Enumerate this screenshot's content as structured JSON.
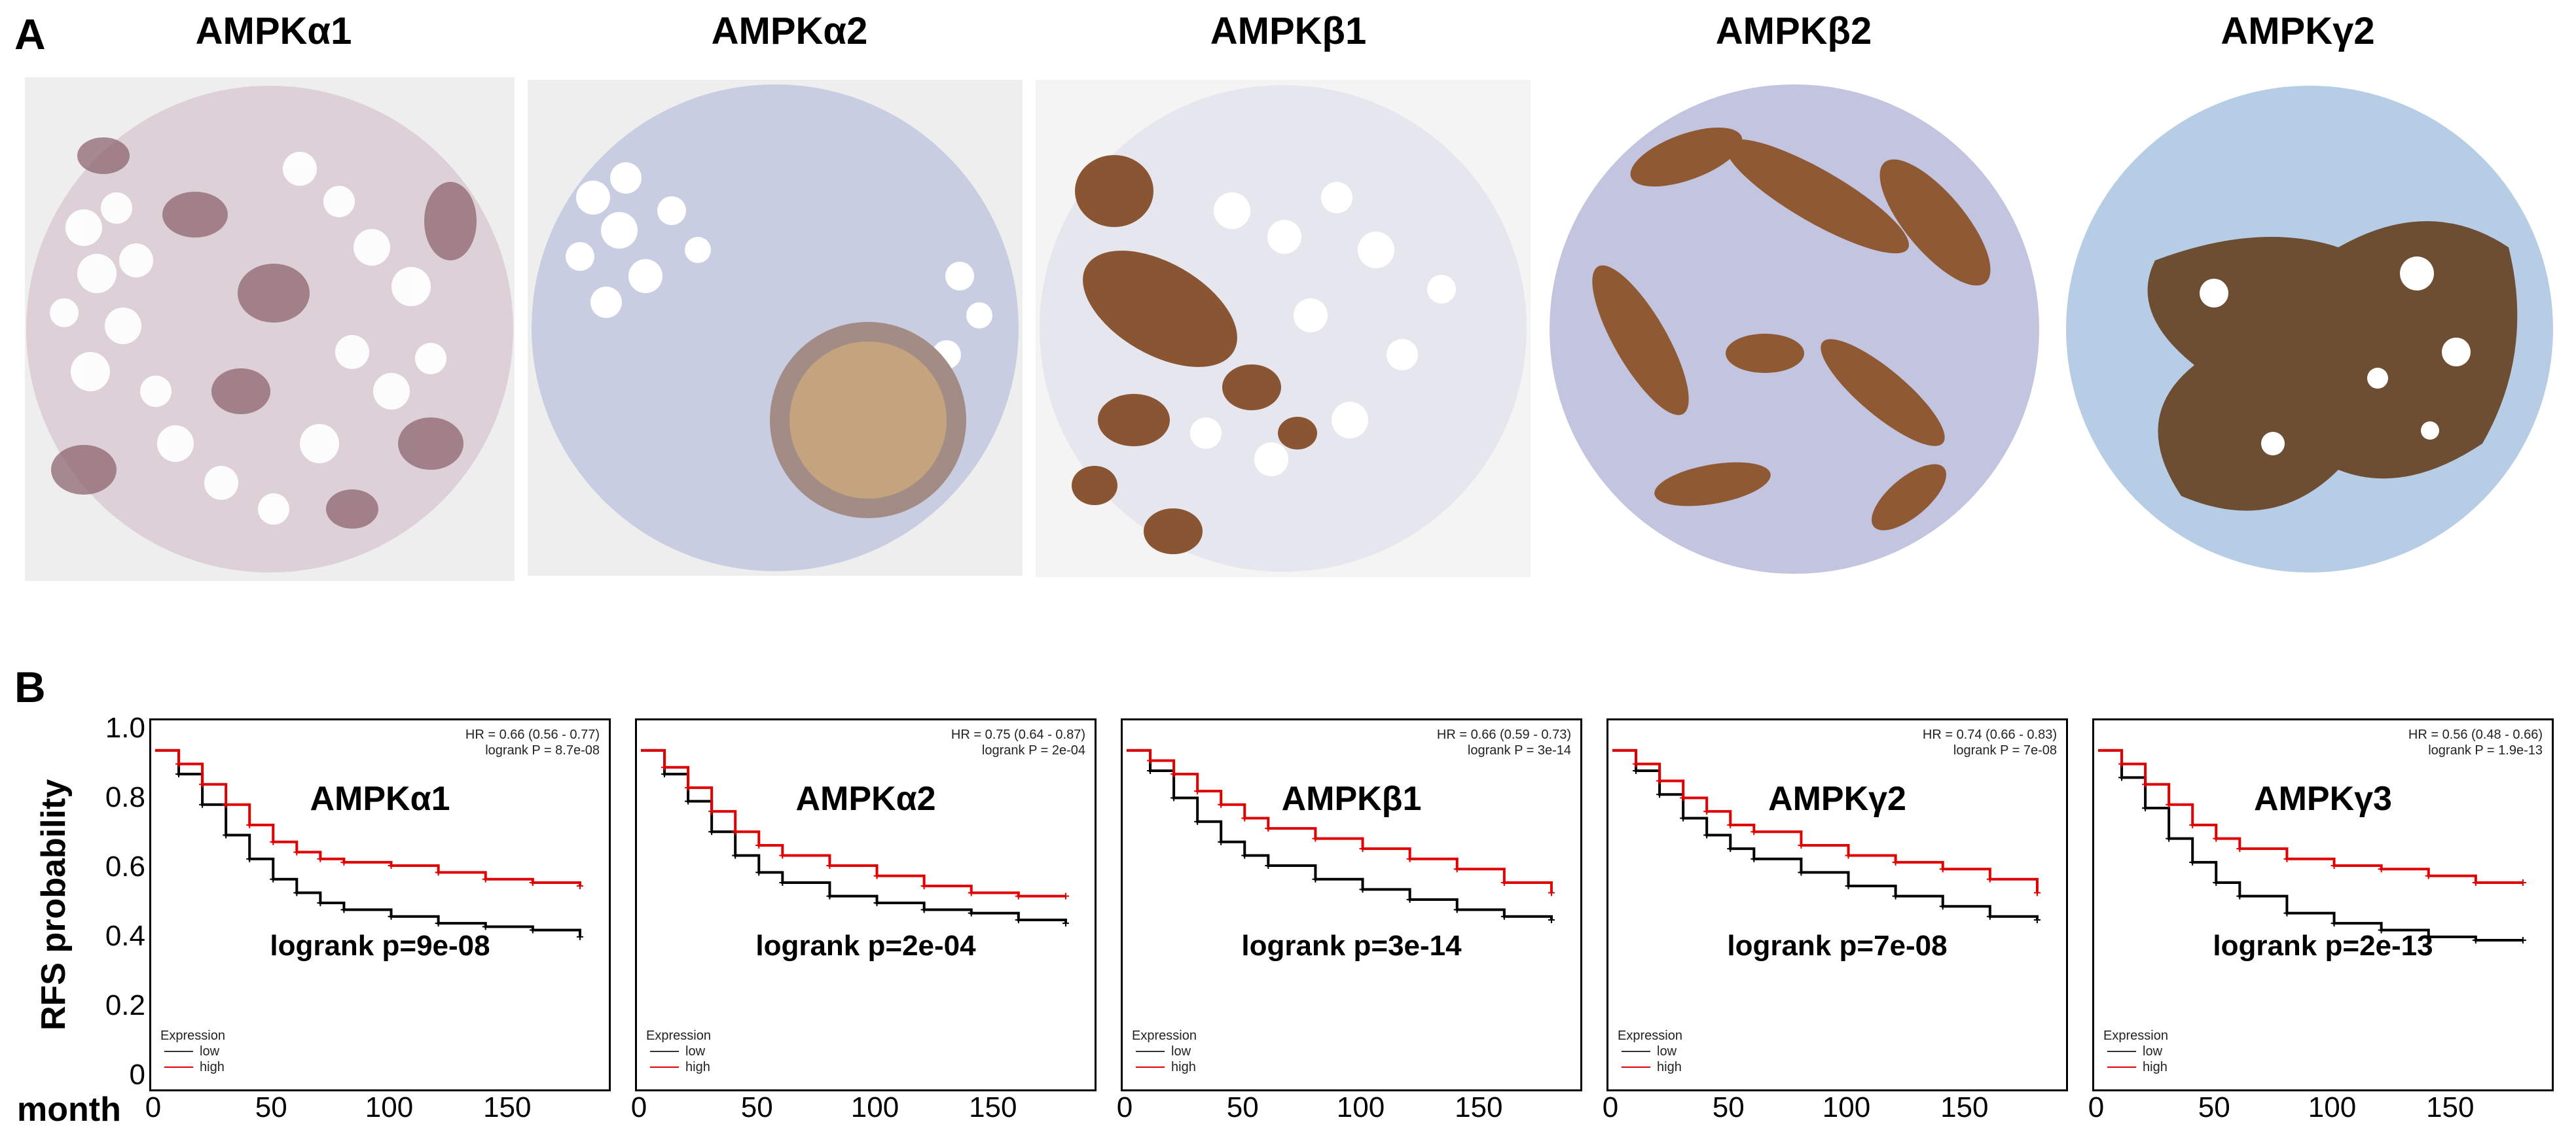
{
  "panel_a": {
    "letter": "A",
    "images": [
      {
        "title": "AMPKα1",
        "stain": "weak"
      },
      {
        "title": "AMPKα2",
        "stain": "negative"
      },
      {
        "title": "AMPKβ1",
        "stain": "strong"
      },
      {
        "title": "AMPKβ2",
        "stain": "strong"
      },
      {
        "title": "AMPKγ2",
        "stain": "strong"
      }
    ]
  },
  "panel_b": {
    "letter": "B",
    "ylabel": "RFS probability",
    "xlabel": "month",
    "legend_title": "Expression",
    "legend_low": "low",
    "legend_high": "high",
    "yticks": [
      "1.0",
      "0.8",
      "0.6",
      "0.4",
      "0.2",
      "0"
    ],
    "xticks": [
      "0",
      "50",
      "100",
      "150"
    ]
  },
  "chart_data": [
    {
      "type": "line",
      "title": "AMPKα1",
      "hr": "HR = 0.66 (0.56 - 0.77)",
      "logrank_small": "logrank P = 8.7e-08",
      "logrank": "logrank p=9e-08",
      "xlim": [
        0,
        190
      ],
      "ylim": [
        0,
        1.05
      ],
      "series": [
        {
          "name": "low",
          "color": "#000000",
          "x": [
            0,
            10,
            20,
            30,
            40,
            50,
            60,
            70,
            80,
            100,
            120,
            140,
            160,
            180
          ],
          "y": [
            1.0,
            0.93,
            0.84,
            0.75,
            0.68,
            0.62,
            0.58,
            0.55,
            0.53,
            0.51,
            0.49,
            0.48,
            0.47,
            0.45
          ]
        },
        {
          "name": "high",
          "color": "#e00000",
          "x": [
            0,
            10,
            20,
            30,
            40,
            50,
            60,
            70,
            80,
            100,
            120,
            140,
            160,
            180
          ],
          "y": [
            1.0,
            0.96,
            0.9,
            0.84,
            0.78,
            0.73,
            0.7,
            0.68,
            0.67,
            0.66,
            0.64,
            0.62,
            0.61,
            0.6
          ]
        }
      ]
    },
    {
      "type": "line",
      "title": "AMPKα2",
      "hr": "HR = 0.75 (0.64 - 0.87)",
      "logrank_small": "logrank P = 2e-04",
      "logrank": "logrank p=2e-04",
      "xlim": [
        0,
        190
      ],
      "ylim": [
        0,
        1.05
      ],
      "series": [
        {
          "name": "low",
          "color": "#000000",
          "x": [
            0,
            10,
            20,
            30,
            40,
            50,
            60,
            80,
            100,
            120,
            140,
            160,
            180
          ],
          "y": [
            1.0,
            0.93,
            0.85,
            0.76,
            0.69,
            0.64,
            0.61,
            0.57,
            0.55,
            0.53,
            0.52,
            0.5,
            0.49
          ]
        },
        {
          "name": "high",
          "color": "#e00000",
          "x": [
            0,
            10,
            20,
            30,
            40,
            50,
            60,
            80,
            100,
            120,
            140,
            160,
            180
          ],
          "y": [
            1.0,
            0.95,
            0.89,
            0.82,
            0.76,
            0.72,
            0.69,
            0.66,
            0.63,
            0.6,
            0.58,
            0.57,
            0.57
          ]
        }
      ]
    },
    {
      "type": "line",
      "title": "AMPKβ1",
      "hr": "HR = 0.66 (0.59 - 0.73)",
      "logrank_small": "logrank P = 3e-14",
      "logrank": "logrank p=3e-14",
      "xlim": [
        0,
        190
      ],
      "ylim": [
        0,
        1.05
      ],
      "series": [
        {
          "name": "low",
          "color": "#000000",
          "x": [
            0,
            10,
            20,
            30,
            40,
            50,
            60,
            80,
            100,
            120,
            140,
            160,
            180
          ],
          "y": [
            1.0,
            0.94,
            0.86,
            0.79,
            0.73,
            0.69,
            0.66,
            0.62,
            0.59,
            0.56,
            0.53,
            0.51,
            0.5
          ]
        },
        {
          "name": "high",
          "color": "#e00000",
          "x": [
            0,
            10,
            20,
            30,
            40,
            50,
            60,
            80,
            100,
            120,
            140,
            160,
            180
          ],
          "y": [
            1.0,
            0.97,
            0.93,
            0.88,
            0.84,
            0.8,
            0.77,
            0.74,
            0.71,
            0.68,
            0.65,
            0.61,
            0.58
          ]
        }
      ]
    },
    {
      "type": "line",
      "title": "AMPKγ2",
      "hr": "HR = 0.74 (0.66 - 0.83)",
      "logrank_small": "logrank P = 7e-08",
      "logrank": "logrank p=7e-08",
      "xlim": [
        0,
        190
      ],
      "ylim": [
        0,
        1.05
      ],
      "series": [
        {
          "name": "low",
          "color": "#000000",
          "x": [
            0,
            10,
            20,
            30,
            40,
            50,
            60,
            80,
            100,
            120,
            140,
            160,
            180
          ],
          "y": [
            1.0,
            0.94,
            0.87,
            0.8,
            0.75,
            0.71,
            0.68,
            0.64,
            0.6,
            0.57,
            0.54,
            0.51,
            0.5
          ]
        },
        {
          "name": "high",
          "color": "#e00000",
          "x": [
            0,
            10,
            20,
            30,
            40,
            50,
            60,
            80,
            100,
            120,
            140,
            160,
            180
          ],
          "y": [
            1.0,
            0.96,
            0.91,
            0.86,
            0.82,
            0.78,
            0.76,
            0.72,
            0.69,
            0.67,
            0.65,
            0.62,
            0.58
          ]
        }
      ]
    },
    {
      "type": "line",
      "title": "AMPKγ3",
      "hr": "HR = 0.56 (0.48 - 0.66)",
      "logrank_small": "logrank P = 1.9e-13",
      "logrank": "logrank p=2e-13",
      "xlim": [
        0,
        190
      ],
      "ylim": [
        0,
        1.05
      ],
      "series": [
        {
          "name": "low",
          "color": "#000000",
          "x": [
            0,
            10,
            20,
            30,
            40,
            50,
            60,
            80,
            100,
            120,
            140,
            160,
            180
          ],
          "y": [
            1.0,
            0.92,
            0.83,
            0.74,
            0.67,
            0.61,
            0.57,
            0.52,
            0.49,
            0.47,
            0.45,
            0.44,
            0.44
          ]
        },
        {
          "name": "high",
          "color": "#e00000",
          "x": [
            0,
            10,
            20,
            30,
            40,
            50,
            60,
            80,
            100,
            120,
            140,
            160,
            180
          ],
          "y": [
            1.0,
            0.96,
            0.9,
            0.84,
            0.78,
            0.74,
            0.71,
            0.68,
            0.66,
            0.65,
            0.63,
            0.61,
            0.61
          ]
        }
      ]
    }
  ]
}
